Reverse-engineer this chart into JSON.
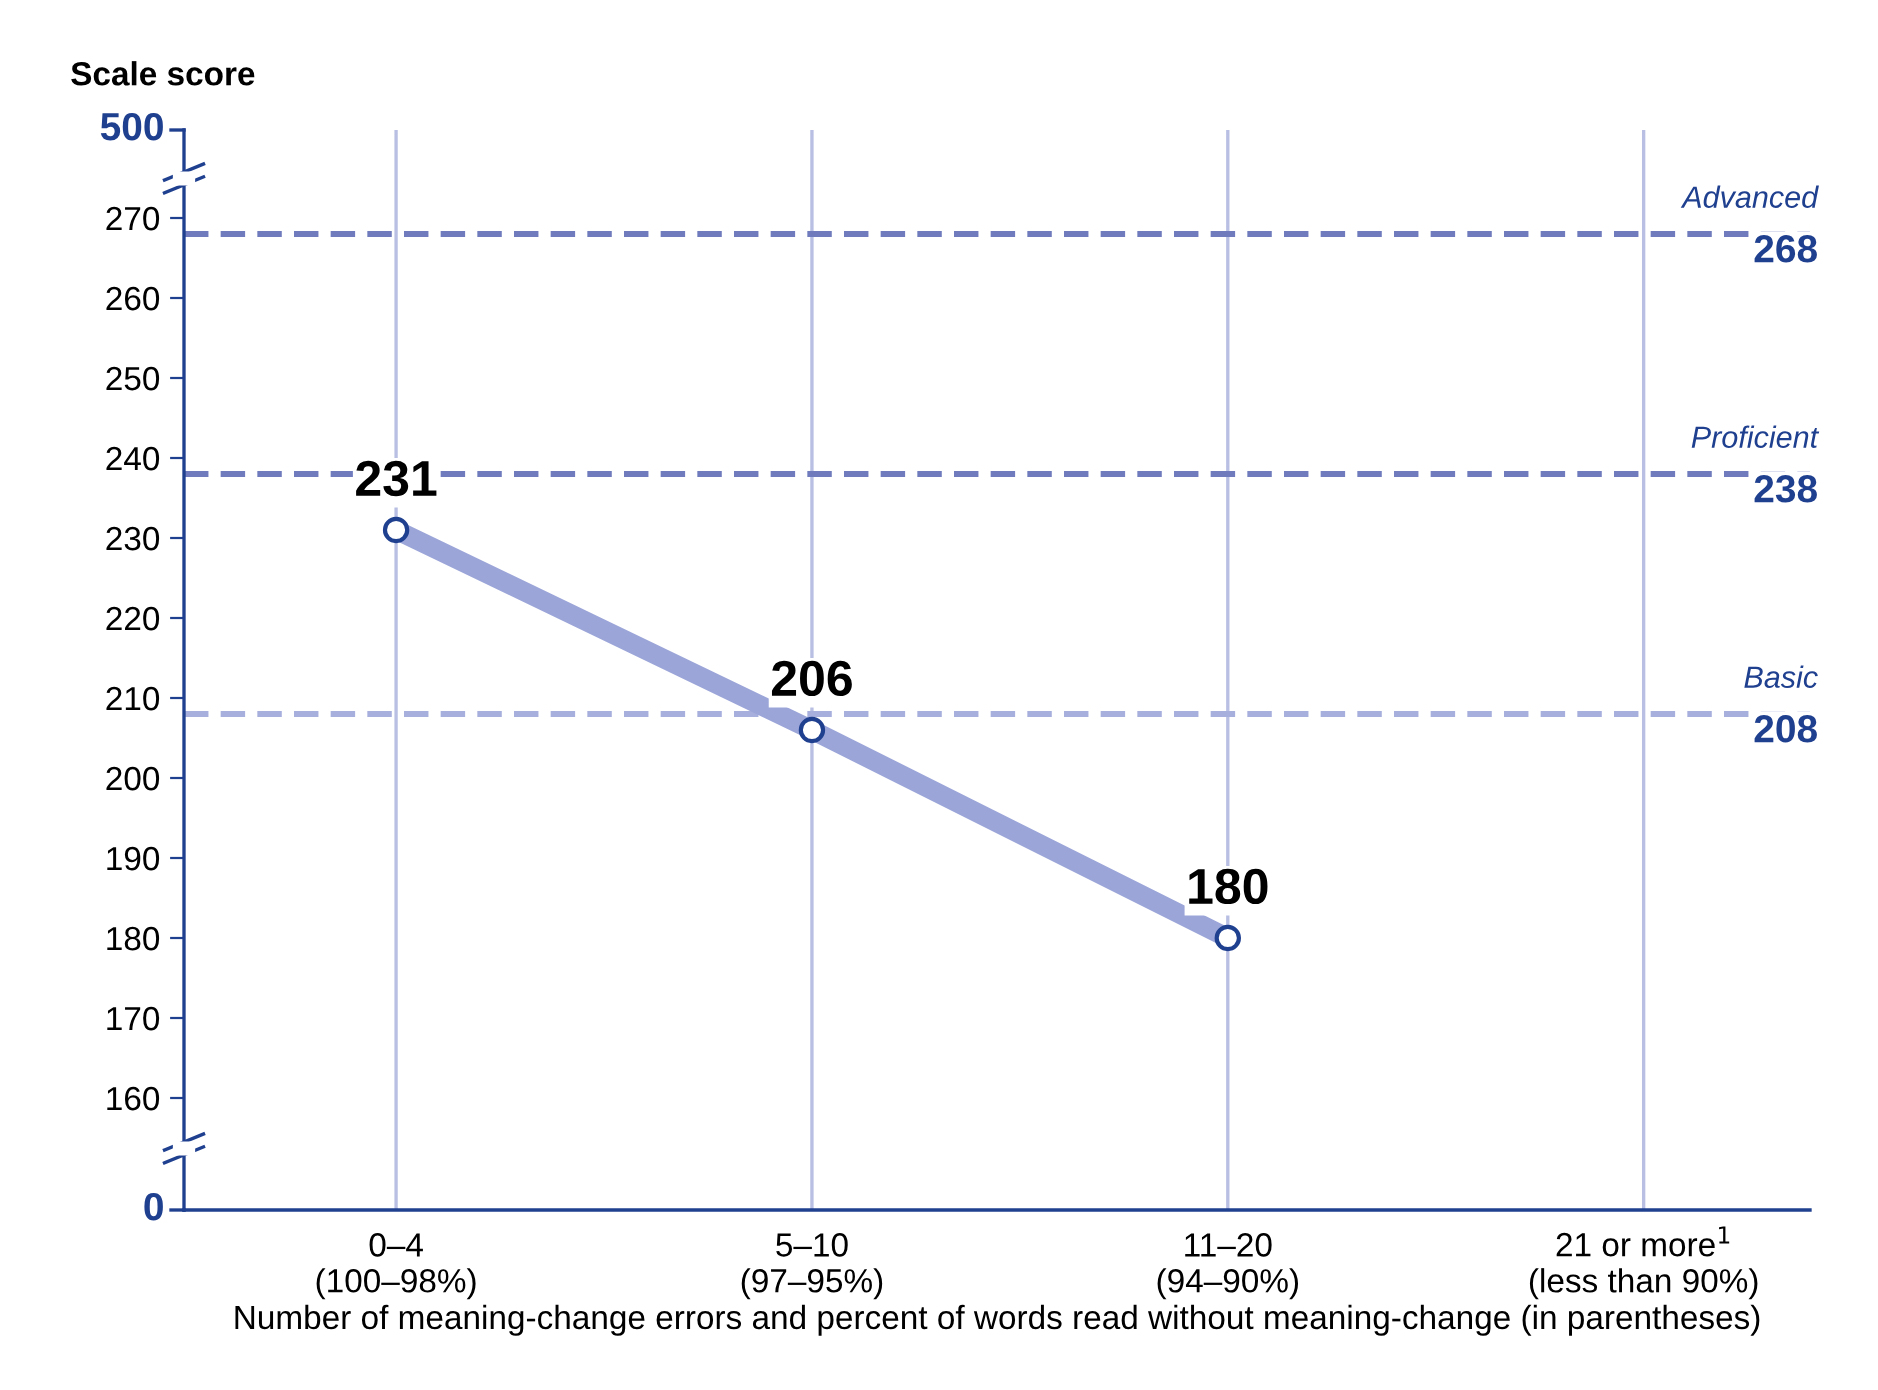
{
  "chart_data": {
    "type": "line",
    "ylabel": "Scale score",
    "xlabel": "Number of meaning-change errors and percent of words read without meaning-change (in parentheses)",
    "categories": [
      "0–4\n(100–98%)",
      "5–10\n(97–95%)",
      "11–20\n(94–90%)",
      "21 or more$^{1}$\n(less than 90%)"
    ],
    "series": [
      {
        "color": "#9ba5d8",
        "values": [
          231,
          206,
          180,
          null
        ]
      }
    ],
    "ylim": [
      146,
      281
    ],
    "yticks": [
      160,
      170,
      180,
      190,
      200,
      210,
      220,
      230,
      240,
      250,
      260,
      270
    ],
    "annotations": [
      "0",
      "500"
    ],
    "ref_lines": [
      {
        "axis": "y",
        "value": 268,
        "label": "Advanced\n268",
        "color": "#6f7bbd",
        "line_style": "dashed"
      },
      {
        "axis": "y",
        "value": 238,
        "label": "Proficient\n238",
        "color": "#6f7bbd",
        "line_style": "dashed"
      },
      {
        "axis": "y",
        "value": 208,
        "label": "Basic\n208",
        "color": "#a7afdc",
        "line_style": "dashed"
      }
    ],
    "grid": "x",
    "marker": "circle",
    "line_style": "solid",
    "data_labels": true
  }
}
